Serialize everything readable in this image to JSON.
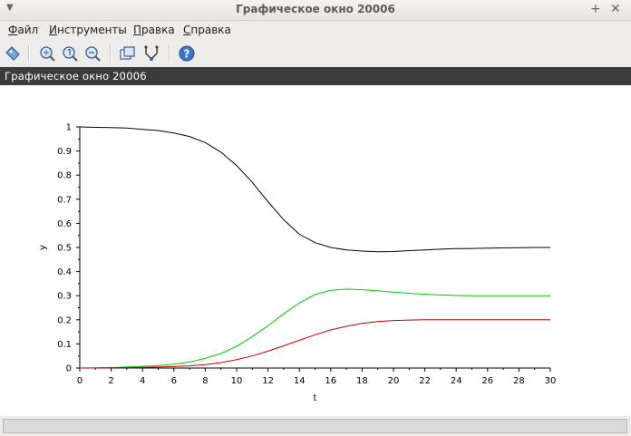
{
  "window": {
    "title": "Графическое окно 20006"
  },
  "menubar": {
    "items": [
      {
        "underline": "Ф",
        "rest": "айл"
      },
      {
        "underline": "И",
        "rest": "нструменты"
      },
      {
        "underline": "П",
        "rest": "равка"
      },
      {
        "underline": "С",
        "rest": "правка"
      }
    ]
  },
  "toolbar": {
    "icons": [
      "datatip-icon",
      "zoom-region-icon",
      "zoom-original-icon",
      "zoom-out-icon",
      "rotate-icon",
      "datatip-manager-icon",
      "help-icon"
    ]
  },
  "figure": {
    "header": "Графическое окно 20006"
  },
  "chart_data": {
    "type": "line",
    "title": "",
    "xlabel": "t",
    "ylabel": "y",
    "xlim": [
      0,
      30
    ],
    "ylim": [
      0,
      1
    ],
    "x_ticks": [
      "0",
      "2",
      "4",
      "6",
      "8",
      "10",
      "12",
      "14",
      "16",
      "18",
      "20",
      "22",
      "24",
      "26",
      "28",
      "30"
    ],
    "y_ticks": [
      "0",
      "0.1",
      "0.2",
      "0.3",
      "0.4",
      "0.5",
      "0.6",
      "0.7",
      "0.8",
      "0.9",
      "1"
    ],
    "grid": false,
    "legend": "none",
    "x": [
      0,
      1,
      2,
      3,
      4,
      5,
      6,
      7,
      8,
      9,
      10,
      11,
      12,
      13,
      14,
      15,
      16,
      17,
      18,
      19,
      20,
      21,
      22,
      23,
      24,
      25,
      26,
      27,
      28,
      29,
      30
    ],
    "series": [
      {
        "color": "#000000",
        "values": [
          1.0,
          0.998,
          0.997,
          0.995,
          0.99,
          0.985,
          0.975,
          0.96,
          0.935,
          0.895,
          0.84,
          0.77,
          0.69,
          0.615,
          0.555,
          0.52,
          0.5,
          0.49,
          0.485,
          0.482,
          0.483,
          0.487,
          0.49,
          0.493,
          0.495,
          0.496,
          0.497,
          0.498,
          0.499,
          0.5,
          0.5
        ]
      },
      {
        "color": "#00cc00",
        "values": [
          0.0,
          0.001,
          0.002,
          0.004,
          0.007,
          0.01,
          0.016,
          0.025,
          0.04,
          0.06,
          0.09,
          0.13,
          0.175,
          0.225,
          0.27,
          0.305,
          0.322,
          0.327,
          0.325,
          0.32,
          0.315,
          0.31,
          0.306,
          0.303,
          0.301,
          0.3,
          0.3,
          0.3,
          0.3,
          0.3,
          0.3
        ]
      },
      {
        "color": "#cc0000",
        "values": [
          0.0,
          0.0,
          0.001,
          0.002,
          0.003,
          0.004,
          0.006,
          0.009,
          0.014,
          0.022,
          0.035,
          0.05,
          0.07,
          0.092,
          0.115,
          0.138,
          0.158,
          0.173,
          0.185,
          0.193,
          0.197,
          0.199,
          0.2,
          0.2,
          0.2,
          0.2,
          0.2,
          0.2,
          0.2,
          0.2,
          0.2
        ]
      }
    ]
  }
}
